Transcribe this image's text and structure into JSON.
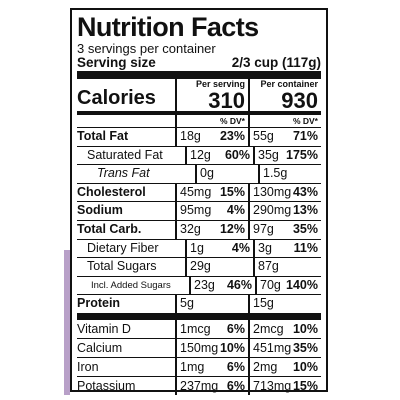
{
  "title": "Nutrition Facts",
  "servings": "3 servings per container",
  "serving_size": {
    "label": "Serving size",
    "value": "2/3 cup (117g)"
  },
  "columns": [
    "Per serving",
    "Per container"
  ],
  "calories": {
    "label": "Calories",
    "values": [
      "310",
      "930"
    ]
  },
  "dv_header": [
    "% DV*",
    "% DV*"
  ],
  "nutrients": [
    {
      "name": "Total Fat",
      "per_serving": {
        "amount": "18g",
        "dv": "23%"
      },
      "per_container": {
        "amount": "55g",
        "dv": "71%"
      }
    },
    {
      "name": "Saturated Fat",
      "per_serving": {
        "amount": "12g",
        "dv": "60%"
      },
      "per_container": {
        "amount": "35g",
        "dv": "175%"
      }
    },
    {
      "name": "Trans Fat",
      "per_serving": {
        "amount": "0g"
      },
      "per_container": {
        "amount": "1.5g"
      }
    },
    {
      "name": "Cholesterol",
      "per_serving": {
        "amount": "45mg",
        "dv": "15%"
      },
      "per_container": {
        "amount": "130mg",
        "dv": "43%"
      }
    },
    {
      "name": "Sodium",
      "per_serving": {
        "amount": "95mg",
        "dv": "4%"
      },
      "per_container": {
        "amount": "290mg",
        "dv": "13%"
      }
    },
    {
      "name": "Total Carb.",
      "per_serving": {
        "amount": "32g",
        "dv": "12%"
      },
      "per_container": {
        "amount": "97g",
        "dv": "35%"
      }
    },
    {
      "name": "Dietary Fiber",
      "per_serving": {
        "amount": "1g",
        "dv": "4%"
      },
      "per_container": {
        "amount": "3g",
        "dv": "11%"
      }
    },
    {
      "name": "Total Sugars",
      "per_serving": {
        "amount": "29g"
      },
      "per_container": {
        "amount": "87g"
      }
    },
    {
      "name": "Incl. Added Sugars",
      "per_serving": {
        "amount": "23g",
        "dv": "46%"
      },
      "per_container": {
        "amount": "70g",
        "dv": "140%"
      }
    },
    {
      "name": "Protein",
      "per_serving": {
        "amount": "5g"
      },
      "per_container": {
        "amount": "15g"
      }
    },
    {
      "name": "Vitamin D",
      "per_serving": {
        "amount": "1mcg",
        "dv": "6%"
      },
      "per_container": {
        "amount": "2mcg",
        "dv": "10%"
      }
    },
    {
      "name": "Calcium",
      "per_serving": {
        "amount": "150mg",
        "dv": "10%"
      },
      "per_container": {
        "amount": "451mg",
        "dv": "35%"
      }
    },
    {
      "name": "Iron",
      "per_serving": {
        "amount": "1mg",
        "dv": "6%"
      },
      "per_container": {
        "amount": "2mg",
        "dv": "10%"
      }
    },
    {
      "name": "Potassium",
      "per_serving": {
        "amount": "237mg",
        "dv": "6%"
      },
      "per_container": {
        "amount": "713mg",
        "dv": "15%"
      }
    }
  ]
}
